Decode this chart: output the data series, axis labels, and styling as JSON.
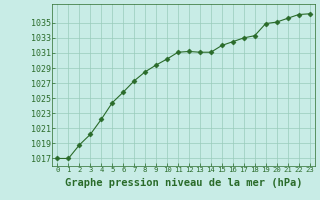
{
  "x": [
    0,
    1,
    2,
    3,
    4,
    5,
    6,
    7,
    8,
    9,
    10,
    11,
    12,
    13,
    14,
    15,
    16,
    17,
    18,
    19,
    20,
    21,
    22,
    23
  ],
  "y": [
    1017.0,
    1017.0,
    1018.8,
    1020.2,
    1022.2,
    1024.4,
    1025.8,
    1027.3,
    1028.5,
    1029.4,
    1030.2,
    1031.1,
    1031.2,
    1031.1,
    1031.1,
    1032.0,
    1032.5,
    1033.0,
    1033.3,
    1034.9,
    1035.1,
    1035.6,
    1036.1,
    1036.2
  ],
  "line_color": "#2a6b2a",
  "marker": "D",
  "marker_size": 2.5,
  "bg_color": "#c8ece6",
  "grid_color": "#99ccbb",
  "xlabel": "Graphe pression niveau de la mer (hPa)",
  "ytick_values": [
    1017,
    1019,
    1021,
    1023,
    1025,
    1027,
    1029,
    1031,
    1033,
    1035
  ],
  "ylim": [
    1016.0,
    1037.5
  ],
  "xlim_min": -0.5,
  "xlim_max": 23.5
}
